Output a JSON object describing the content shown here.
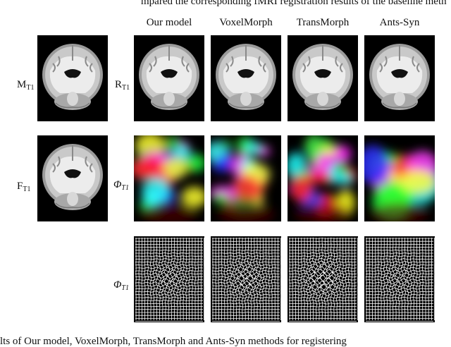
{
  "header_text": "mpared the corresponding fMRI registration results of the baseline meth",
  "footer_text": "lts of Our model, VoxelMorph, TransMorph and Ants-Syn methods for registering",
  "columns": [
    "Our model",
    "VoxelMorph",
    "TransMorph",
    "Ants-Syn"
  ],
  "row_labels": {
    "moving": {
      "main": "M",
      "sub": "T1"
    },
    "fixed": {
      "main": "F",
      "sub": "T1"
    },
    "registered": {
      "main": "R",
      "sub": "T1"
    },
    "field": {
      "main": "Φ",
      "sub": "T1"
    },
    "grid": {
      "main": "Φ",
      "sub": "T1"
    }
  }
}
